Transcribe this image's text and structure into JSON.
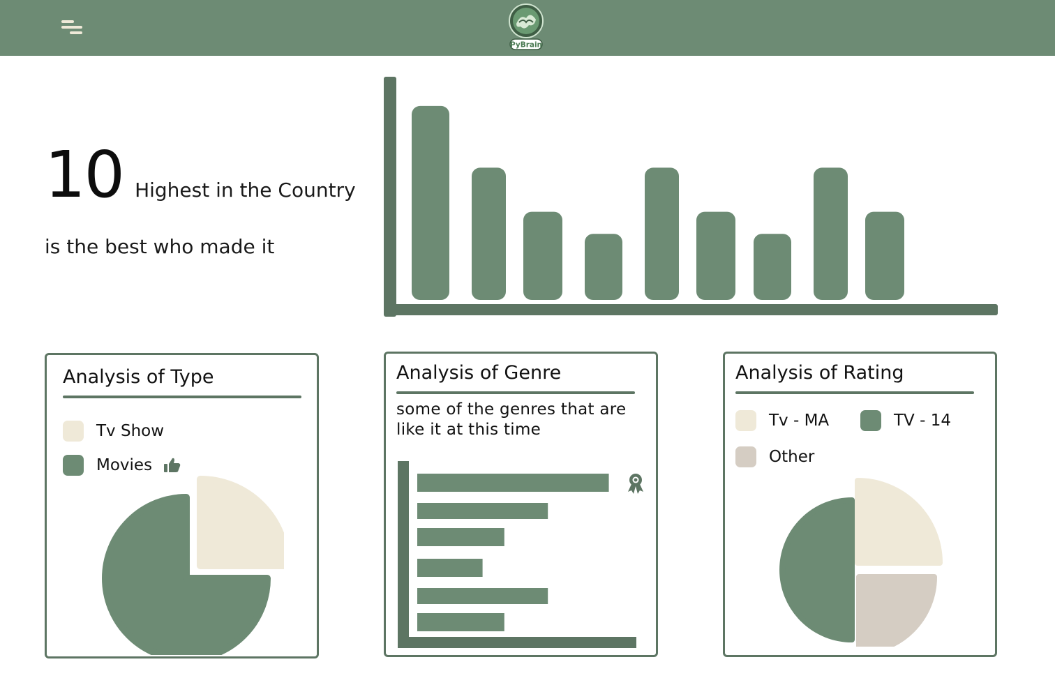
{
  "header": {
    "logo_text": "PyBrain",
    "colors": {
      "bar": "#6d8b74"
    }
  },
  "hero": {
    "number": "10",
    "title": "Highest in the Country",
    "subtitle": "is the best who made it"
  },
  "main_chart": {
    "chart_data": {
      "type": "bar",
      "values": [
        88,
        60,
        40,
        30,
        60,
        40,
        30,
        60,
        40
      ],
      "ylim": [
        0,
        100
      ],
      "color": "#6d8b74",
      "axis_color": "#5d7563"
    }
  },
  "cards": {
    "type": {
      "title": "Analysis of Type",
      "legend": [
        {
          "label": "Tv Show",
          "color": "#efe9d8"
        },
        {
          "label": "Movies",
          "color": "#6d8b74",
          "icon": "thumbs-up-icon"
        }
      ],
      "chart_data": {
        "type": "pie",
        "slices": [
          {
            "label": "Tv Show",
            "value": 25,
            "color": "#efe9d8"
          },
          {
            "label": "Movies",
            "value": 75,
            "color": "#6d8b74"
          }
        ]
      }
    },
    "genre": {
      "title": "Analysis of Genre",
      "subtitle": "some of the genres that are like it at this time",
      "icon": "award-ribbon-icon",
      "chart_data": {
        "type": "bar",
        "orientation": "horizontal",
        "values": [
          88,
          60,
          40,
          30,
          60,
          40
        ],
        "xlim": [
          0,
          100
        ],
        "color": "#6d8b74"
      }
    },
    "rating": {
      "title": "Analysis of Rating",
      "legend": [
        {
          "label": "Tv - MA",
          "color": "#efe9d8"
        },
        {
          "label": "TV - 14",
          "color": "#6d8b74"
        },
        {
          "label": "Other",
          "color": "#d5cdc3"
        }
      ],
      "chart_data": {
        "type": "pie",
        "slices": [
          {
            "label": "Tv - MA",
            "value": 25,
            "color": "#efe9d8"
          },
          {
            "label": "Other",
            "value": 25,
            "color": "#d5cdc3"
          },
          {
            "label": "TV - 14",
            "value": 50,
            "color": "#6d8b74"
          }
        ]
      }
    }
  }
}
